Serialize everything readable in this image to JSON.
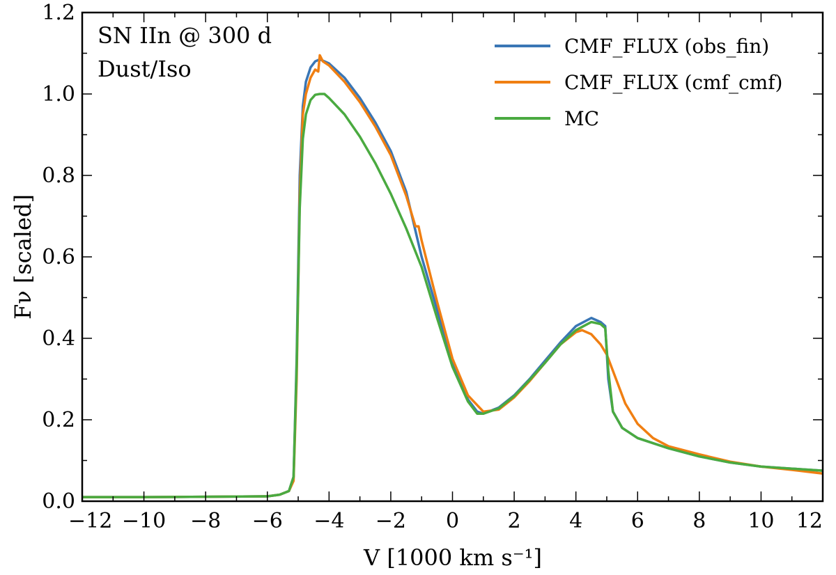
{
  "chart_data": {
    "type": "line",
    "title": "",
    "xlabel": "V [1000 km s⁻¹]",
    "ylabel": "Fν [scaled]",
    "xlim": [
      -12,
      12
    ],
    "ylim": [
      0,
      1.2
    ],
    "x_major_ticks": [
      -12,
      -10,
      -8,
      -6,
      -4,
      -2,
      0,
      2,
      4,
      6,
      8,
      10,
      12
    ],
    "x_tick_labels": [
      "−12",
      "−10",
      "−8",
      "−6",
      "−4",
      "−2",
      "0",
      "2",
      "4",
      "6",
      "8",
      "10",
      "12"
    ],
    "y_major_ticks": [
      0.0,
      0.2,
      0.4,
      0.6,
      0.8,
      1.0,
      1.2
    ],
    "y_tick_labels": [
      "0.0",
      "0.2",
      "0.4",
      "0.6",
      "0.8",
      "1.0",
      "1.2"
    ],
    "grid": false,
    "legend_position": "top-right",
    "annotations": [
      "SN IIn @ 300 d",
      "Dust/Iso"
    ],
    "series": [
      {
        "name": "CMF_FLUX (obs_fin)",
        "color": "#3a76b5",
        "x": [
          -12,
          -10,
          -8,
          -6,
          -5.6,
          -5.3,
          -5.15,
          -5.05,
          -4.95,
          -4.85,
          -4.75,
          -4.6,
          -4.45,
          -4.3,
          -4.0,
          -3.5,
          -3.0,
          -2.5,
          -2.0,
          -1.5,
          -1.25,
          -1.0,
          -0.5,
          0,
          0.5,
          0.8,
          1.0,
          1.5,
          2.0,
          2.5,
          3.0,
          3.5,
          4.0,
          4.5,
          4.8,
          4.95,
          5.05,
          5.2,
          5.5,
          6.0,
          7.0,
          8.0,
          9.0,
          10.0,
          11.0,
          12.0
        ],
        "y": [
          0.01,
          0.01,
          0.011,
          0.012,
          0.016,
          0.025,
          0.06,
          0.35,
          0.8,
          0.97,
          1.03,
          1.065,
          1.08,
          1.085,
          1.075,
          1.04,
          0.99,
          0.93,
          0.86,
          0.76,
          0.68,
          0.6,
          0.47,
          0.34,
          0.25,
          0.22,
          0.215,
          0.23,
          0.26,
          0.3,
          0.345,
          0.39,
          0.43,
          0.45,
          0.44,
          0.43,
          0.3,
          0.22,
          0.18,
          0.155,
          0.13,
          0.11,
          0.095,
          0.085,
          0.08,
          0.075
        ]
      },
      {
        "name": "CMF_FLUX (cmf_cmf)",
        "color": "#f07f12",
        "x": [
          -12,
          -10,
          -8,
          -6,
          -5.6,
          -5.3,
          -5.15,
          -5.05,
          -4.95,
          -4.85,
          -4.75,
          -4.6,
          -4.45,
          -4.35,
          -4.3,
          -4.2,
          -4.0,
          -3.5,
          -3.0,
          -2.5,
          -2.0,
          -1.5,
          -1.3,
          -1.2,
          -1.1,
          -1.0,
          -0.5,
          0,
          0.5,
          1.0,
          1.5,
          2.0,
          2.5,
          3.0,
          3.5,
          4.0,
          4.2,
          4.5,
          4.8,
          5.0,
          5.3,
          5.6,
          6.0,
          6.5,
          7.0,
          8.0,
          9.0,
          10.0,
          11.0,
          12.0
        ],
        "y": [
          0.01,
          0.01,
          0.011,
          0.012,
          0.016,
          0.025,
          0.05,
          0.3,
          0.75,
          0.95,
          1.0,
          1.04,
          1.06,
          1.055,
          1.095,
          1.08,
          1.07,
          1.03,
          0.98,
          0.92,
          0.85,
          0.75,
          0.7,
          0.675,
          0.675,
          0.64,
          0.49,
          0.35,
          0.26,
          0.22,
          0.225,
          0.255,
          0.295,
          0.34,
          0.385,
          0.415,
          0.42,
          0.41,
          0.385,
          0.36,
          0.3,
          0.24,
          0.19,
          0.155,
          0.135,
          0.115,
          0.097,
          0.085,
          0.077,
          0.068
        ]
      },
      {
        "name": "MC",
        "color": "#4aaa40",
        "x": [
          -12,
          -10,
          -8,
          -6,
          -5.6,
          -5.3,
          -5.15,
          -5.05,
          -4.95,
          -4.85,
          -4.75,
          -4.6,
          -4.45,
          -4.3,
          -4.15,
          -4.0,
          -3.5,
          -3.0,
          -2.5,
          -2.0,
          -1.5,
          -1.0,
          -0.5,
          0,
          0.5,
          0.8,
          1.0,
          1.5,
          2.0,
          2.5,
          3.0,
          3.5,
          4.0,
          4.5,
          4.8,
          4.95,
          5.05,
          5.2,
          5.5,
          6.0,
          7.0,
          8.0,
          9.0,
          10.0,
          11.0,
          12.0
        ],
        "y": [
          0.01,
          0.01,
          0.011,
          0.012,
          0.016,
          0.025,
          0.06,
          0.33,
          0.72,
          0.89,
          0.95,
          0.985,
          0.998,
          1.0,
          1.0,
          0.99,
          0.95,
          0.895,
          0.83,
          0.755,
          0.67,
          0.575,
          0.45,
          0.33,
          0.245,
          0.215,
          0.215,
          0.228,
          0.258,
          0.298,
          0.34,
          0.385,
          0.42,
          0.44,
          0.435,
          0.425,
          0.32,
          0.22,
          0.18,
          0.155,
          0.13,
          0.11,
          0.095,
          0.085,
          0.08,
          0.075
        ]
      }
    ]
  }
}
